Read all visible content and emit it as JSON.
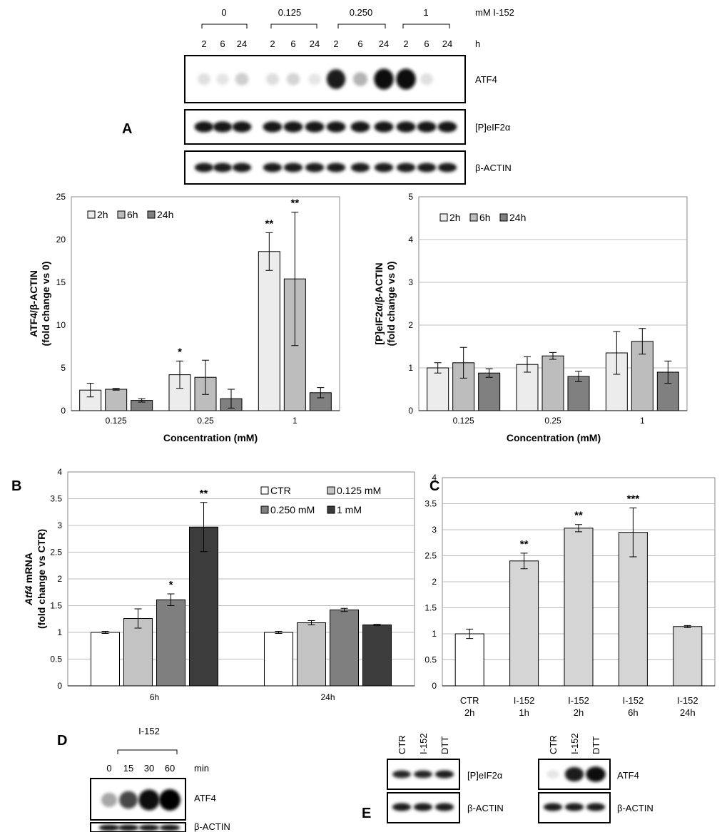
{
  "colors": {
    "c2h": "#ececec",
    "c6h": "#bdbdbd",
    "c24h": "#808080",
    "ctr": "#ffffff",
    "c0125": "#c3c3c3",
    "c025": "#7f7f7f",
    "c1": "#3c3c3c",
    "cC": "#d5d5d5",
    "grid": "#bdbdbd"
  },
  "panel_a": {
    "letter": "A",
    "header": {
      "conc": [
        "0",
        "0.125",
        "0.250",
        "1"
      ],
      "times": [
        "2",
        "6",
        "24",
        "2",
        "6",
        "24",
        "2",
        "6",
        "24",
        "2",
        "6",
        "24"
      ],
      "conc_unit": "mM I-152",
      "time_unit": "h"
    },
    "blots": [
      {
        "label": "ATF4",
        "bands": [
          0.08,
          0.05,
          0.18,
          0.1,
          0.15,
          0.05,
          0.85,
          0.3,
          0.95,
          0.95,
          0.08,
          0.02
        ]
      },
      {
        "label": "[P]eIF2α",
        "bands": [
          0.9,
          0.9,
          0.9,
          0.9,
          0.9,
          0.9,
          0.9,
          0.9,
          0.9,
          0.9,
          0.9,
          0.9
        ]
      },
      {
        "label": "β-ACTIN",
        "bands": [
          0.85,
          0.85,
          0.85,
          0.85,
          0.85,
          0.85,
          0.85,
          0.85,
          0.85,
          0.85,
          0.85,
          0.85
        ]
      }
    ]
  },
  "chart_data": [
    {
      "id": "A-left",
      "type": "bar",
      "categories": [
        "0.125",
        "0.25",
        "1"
      ],
      "series": [
        {
          "name": "2h",
          "values": [
            2.4,
            4.2,
            18.6
          ],
          "errors": [
            0.8,
            1.6,
            2.2
          ]
        },
        {
          "name": "6h",
          "values": [
            2.5,
            3.9,
            15.4
          ],
          "errors": [
            0.1,
            2.0,
            7.8
          ]
        },
        {
          "name": "24h",
          "values": [
            1.2,
            1.4,
            2.1
          ],
          "errors": [
            0.2,
            1.1,
            0.6
          ]
        }
      ],
      "significance": [
        {
          "series": 0,
          "cat": 1,
          "text": "*"
        },
        {
          "series": 0,
          "cat": 2,
          "text": "**"
        },
        {
          "series": 1,
          "cat": 2,
          "text": "**"
        }
      ],
      "ylabel": "ATF4/β-ACTIN",
      "ylabel2": "(fold change vs 0)",
      "xlabel": "Concentration (mM)",
      "ylim": [
        0,
        25
      ],
      "yticks": [
        "0",
        "5",
        "10",
        "15",
        "20",
        "25"
      ],
      "grid": false,
      "legend": "top-left"
    },
    {
      "id": "A-right",
      "type": "bar",
      "categories": [
        "0.125",
        "0.25",
        "1"
      ],
      "series": [
        {
          "name": "2h",
          "values": [
            1.0,
            1.08,
            1.35
          ],
          "errors": [
            0.12,
            0.18,
            0.5
          ]
        },
        {
          "name": "6h",
          "values": [
            1.12,
            1.28,
            1.62
          ],
          "errors": [
            0.36,
            0.08,
            0.3
          ]
        },
        {
          "name": "24h",
          "values": [
            0.88,
            0.8,
            0.9
          ],
          "errors": [
            0.1,
            0.12,
            0.26
          ]
        }
      ],
      "significance": [],
      "ylabel": "[P]eIF2α/β-ACTIN",
      "ylabel2": "(fold change vs 0)",
      "xlabel": "Concentration (mM)",
      "ylim": [
        0,
        5
      ],
      "yticks": [
        "0",
        "1",
        "2",
        "3",
        "4",
        "5"
      ],
      "grid": true,
      "legend": "top-left"
    },
    {
      "id": "B",
      "type": "bar",
      "categories": [
        "6h",
        "24h"
      ],
      "series": [
        {
          "name": "CTR",
          "values": [
            1.0,
            1.0
          ],
          "errors": [
            0.02,
            0.02
          ]
        },
        {
          "name": "0.125 mM",
          "values": [
            1.26,
            1.18
          ],
          "errors": [
            0.18,
            0.04
          ]
        },
        {
          "name": "0.250 mM",
          "values": [
            1.61,
            1.42
          ],
          "errors": [
            0.11,
            0.03
          ]
        },
        {
          "name": "1 mM",
          "values": [
            2.97,
            1.14
          ],
          "errors": [
            0.46,
            0.01
          ]
        }
      ],
      "significance": [
        {
          "series": 2,
          "cat": 0,
          "text": "*"
        },
        {
          "series": 3,
          "cat": 0,
          "text": "**"
        }
      ],
      "ylabel_italic": "Atf4",
      "ylabel_rest": " mRNA",
      "ylabel2": "(fold change vs CTR)",
      "ylim": [
        0,
        4
      ],
      "yticks": [
        "0",
        "0.5",
        "1",
        "1.5",
        "2",
        "2.5",
        "3",
        "3.5",
        "4"
      ],
      "grid": true,
      "legend": "top-right"
    },
    {
      "id": "C",
      "type": "bar",
      "categories": [
        [
          "CTR",
          "2h"
        ],
        [
          "I-152",
          "1h"
        ],
        [
          "I-152",
          "2h"
        ],
        [
          "I-152",
          "6h"
        ],
        [
          "I-152",
          "24h"
        ]
      ],
      "values": [
        1.0,
        2.4,
        3.03,
        2.95,
        1.14
      ],
      "errors": [
        0.09,
        0.15,
        0.07,
        0.47,
        0.02
      ],
      "significance": [
        {
          "cat": 1,
          "text": "**"
        },
        {
          "cat": 2,
          "text": "**"
        },
        {
          "cat": 3,
          "text": "***"
        }
      ],
      "ylim": [
        0,
        4
      ],
      "yticks": [
        "0",
        "0.5",
        "1",
        "1.5",
        "2",
        "2.5",
        "3",
        "3.5",
        "4"
      ],
      "grid": true
    }
  ],
  "panel_b": {
    "letter": "B"
  },
  "panel_c": {
    "letter": "C"
  },
  "panel_d": {
    "letter": "D",
    "treatment": "I-152",
    "lanes": [
      "0",
      "15",
      "30",
      "60"
    ],
    "unit": "min",
    "blots": [
      {
        "label": "ATF4",
        "bands": [
          0.35,
          0.65,
          0.95,
          1.0
        ]
      },
      {
        "label": "β-ACTIN",
        "bands": [
          0.9,
          0.9,
          0.9,
          0.9
        ]
      }
    ]
  },
  "panel_e": {
    "letter": "E",
    "lanes": [
      "CTR",
      "I-152",
      "DTT"
    ],
    "left_blots": [
      {
        "label": "[P]eIF2α",
        "bands": [
          0.8,
          0.8,
          0.85
        ]
      },
      {
        "label": "β-ACTIN",
        "bands": [
          0.85,
          0.85,
          0.85
        ]
      }
    ],
    "right_blots": [
      {
        "label": "ATF4",
        "bands": [
          0.05,
          0.85,
          0.95
        ]
      },
      {
        "label": "β-ACTIN",
        "bands": [
          0.85,
          0.85,
          0.85
        ]
      }
    ]
  }
}
